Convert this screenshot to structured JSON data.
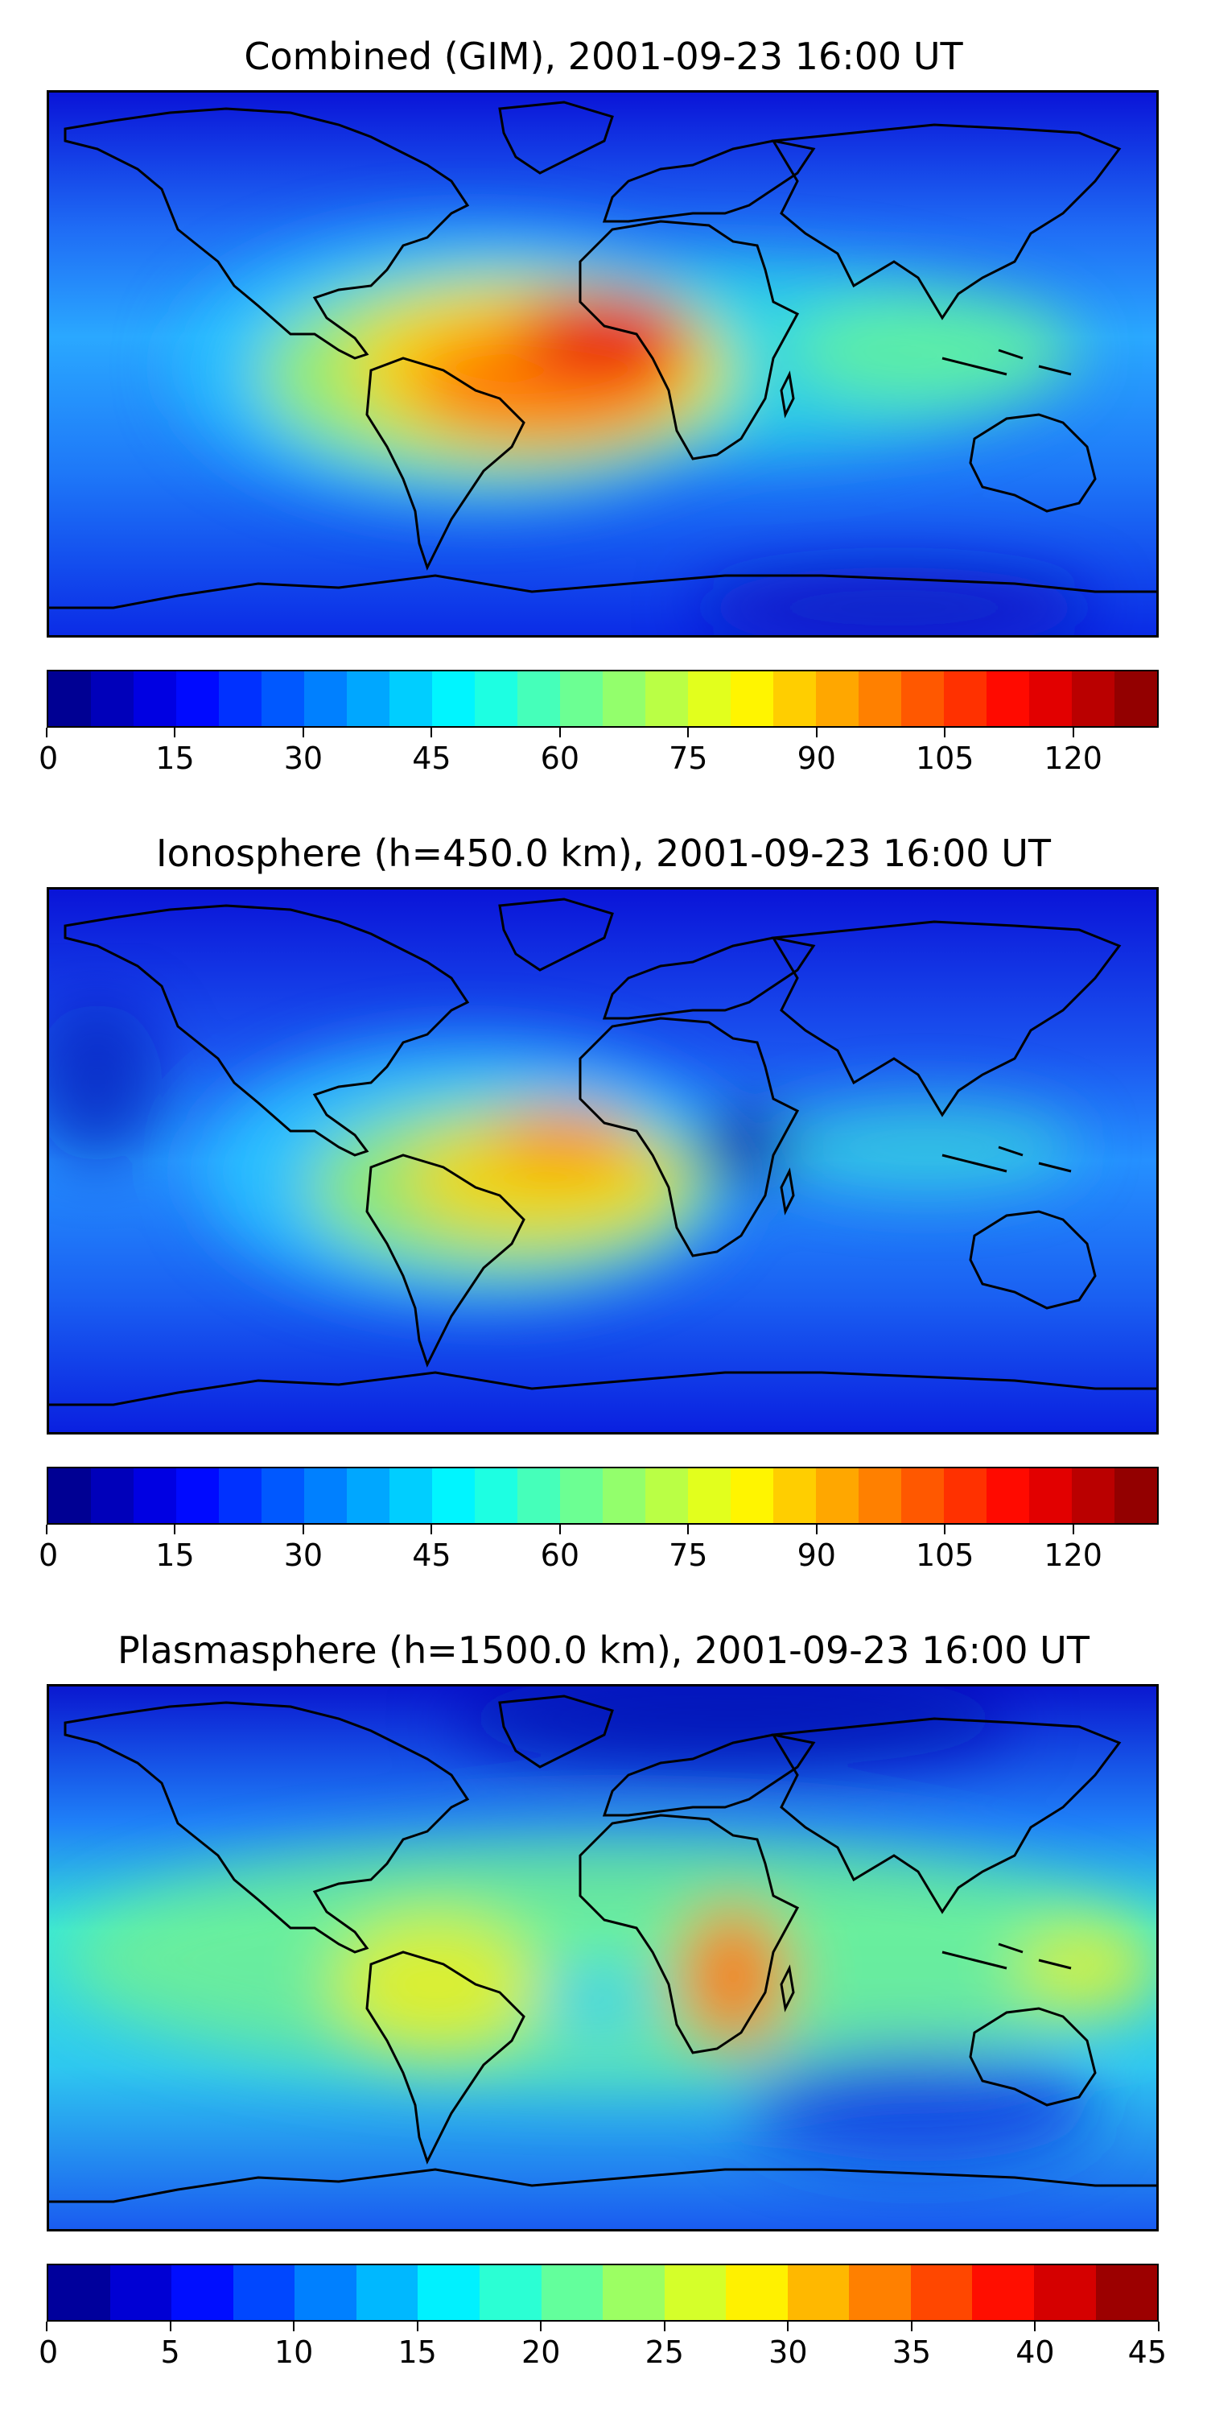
{
  "panels": [
    {
      "title": "Combined (GIM), 2001-09-23 16:00 UT",
      "colorbar": {
        "min": 0,
        "max": 130,
        "levels": 26,
        "ticks": [
          "0",
          "15",
          "30",
          "45",
          "60",
          "75",
          "90",
          "105",
          "120"
        ],
        "tick_values": [
          0,
          15,
          30,
          45,
          60,
          75,
          90,
          105,
          120
        ]
      }
    },
    {
      "title": "Ionosphere  (h=450.0 km), 2001-09-23 16:00 UT",
      "colorbar": {
        "min": 0,
        "max": 130,
        "levels": 26,
        "ticks": [
          "0",
          "15",
          "30",
          "45",
          "60",
          "75",
          "90",
          "105",
          "120"
        ],
        "tick_values": [
          0,
          15,
          30,
          45,
          60,
          75,
          90,
          105,
          120
        ]
      }
    },
    {
      "title": "Plasmasphere (h=1500.0 km), 2001-09-23 16:00 UT",
      "colorbar": {
        "min": 0,
        "max": 45,
        "levels": 18,
        "ticks": [
          "0",
          "5",
          "10",
          "15",
          "20",
          "25",
          "30",
          "35",
          "40",
          "45"
        ],
        "tick_values": [
          0,
          5,
          10,
          15,
          20,
          25,
          30,
          35,
          40,
          45
        ]
      }
    }
  ],
  "colormap": "jet",
  "coastline_color": "#000000"
}
